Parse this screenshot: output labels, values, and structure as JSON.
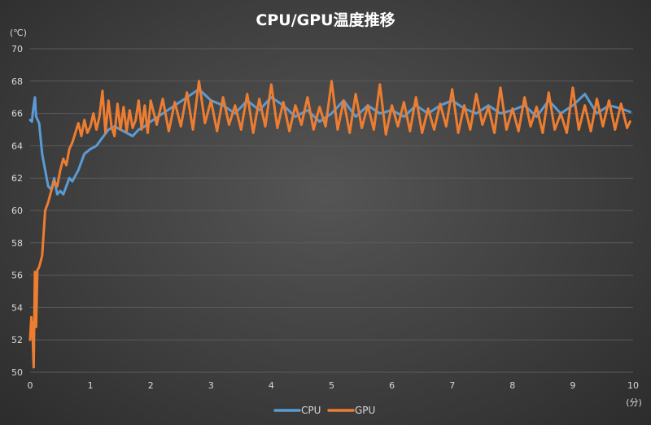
{
  "chart_data": {
    "type": "line",
    "title": "CPU/GPU温度推移",
    "ylabel": "(℃)",
    "xlabel": "(分)",
    "xlim": [
      0,
      10
    ],
    "ylim": [
      50,
      70
    ],
    "x_ticks": [
      0,
      1,
      2,
      3,
      4,
      5,
      6,
      7,
      8,
      9,
      10
    ],
    "y_ticks": [
      50,
      52,
      54,
      56,
      58,
      60,
      62,
      64,
      66,
      68,
      70
    ],
    "grid": "horizontal",
    "legend": "bottom-center",
    "series": [
      {
        "name": "CPU",
        "color": "#5b9bd5",
        "x": [
          0,
          0.03,
          0.05,
          0.08,
          0.1,
          0.15,
          0.2,
          0.25,
          0.3,
          0.35,
          0.4,
          0.45,
          0.5,
          0.55,
          0.6,
          0.65,
          0.7,
          0.8,
          0.9,
          1.0,
          1.1,
          1.2,
          1.3,
          1.4,
          1.5,
          1.6,
          1.7,
          1.8,
          1.9,
          2.0,
          2.2,
          2.4,
          2.6,
          2.8,
          3.0,
          3.2,
          3.4,
          3.6,
          3.8,
          4.0,
          4.2,
          4.4,
          4.6,
          4.8,
          5.0,
          5.2,
          5.4,
          5.6,
          5.8,
          6.0,
          6.2,
          6.4,
          6.6,
          6.8,
          7.0,
          7.2,
          7.4,
          7.6,
          7.8,
          8.0,
          8.2,
          8.4,
          8.6,
          8.8,
          9.0,
          9.2,
          9.4,
          9.6,
          9.8,
          9.95
        ],
        "y": [
          65.6,
          65.5,
          66.2,
          67.0,
          65.8,
          65.4,
          63.5,
          62.5,
          61.5,
          61.3,
          62.0,
          61.0,
          61.2,
          61.0,
          61.5,
          62.0,
          61.8,
          62.5,
          63.5,
          63.8,
          64.0,
          64.5,
          65.0,
          65.2,
          65.0,
          64.8,
          64.6,
          65.0,
          65.2,
          65.5,
          66.0,
          66.5,
          67.0,
          67.5,
          66.8,
          66.5,
          66.0,
          66.8,
          66.2,
          67.0,
          66.5,
          65.8,
          66.2,
          65.5,
          66.0,
          66.8,
          65.8,
          66.5,
          66.0,
          66.2,
          65.8,
          66.5,
          66.0,
          66.5,
          66.8,
          66.3,
          66.0,
          66.5,
          66.0,
          66.2,
          66.5,
          65.8,
          66.8,
          66.0,
          66.5,
          67.2,
          66.0,
          66.5,
          66.3,
          66.1
        ]
      },
      {
        "name": "GPU",
        "color": "#ed7d31",
        "x": [
          0,
          0.02,
          0.04,
          0.06,
          0.08,
          0.1,
          0.12,
          0.15,
          0.2,
          0.25,
          0.3,
          0.35,
          0.4,
          0.45,
          0.5,
          0.55,
          0.6,
          0.65,
          0.7,
          0.75,
          0.8,
          0.85,
          0.9,
          0.95,
          1.0,
          1.05,
          1.1,
          1.15,
          1.2,
          1.25,
          1.3,
          1.35,
          1.4,
          1.45,
          1.5,
          1.55,
          1.6,
          1.65,
          1.7,
          1.75,
          1.8,
          1.85,
          1.9,
          1.95,
          2.0,
          2.1,
          2.2,
          2.3,
          2.4,
          2.5,
          2.6,
          2.7,
          2.8,
          2.9,
          3.0,
          3.1,
          3.2,
          3.3,
          3.4,
          3.5,
          3.6,
          3.7,
          3.8,
          3.9,
          4.0,
          4.1,
          4.2,
          4.3,
          4.4,
          4.5,
          4.6,
          4.7,
          4.8,
          4.9,
          5.0,
          5.1,
          5.2,
          5.3,
          5.4,
          5.5,
          5.6,
          5.7,
          5.8,
          5.9,
          6.0,
          6.1,
          6.2,
          6.3,
          6.4,
          6.5,
          6.6,
          6.7,
          6.8,
          6.9,
          7.0,
          7.1,
          7.2,
          7.3,
          7.4,
          7.5,
          7.6,
          7.7,
          7.8,
          7.9,
          8.0,
          8.1,
          8.2,
          8.3,
          8.4,
          8.5,
          8.6,
          8.7,
          8.8,
          8.9,
          9.0,
          9.1,
          9.2,
          9.3,
          9.4,
          9.5,
          9.6,
          9.7,
          9.8,
          9.9,
          9.95
        ],
        "y": [
          52.0,
          53.4,
          52.5,
          50.3,
          56.2,
          52.8,
          56.3,
          56.5,
          57.2,
          60.0,
          60.5,
          61.2,
          61.8,
          61.5,
          62.5,
          63.2,
          62.8,
          63.8,
          64.2,
          64.8,
          65.4,
          64.6,
          65.6,
          64.8,
          65.2,
          66.0,
          65.0,
          65.8,
          67.4,
          64.8,
          66.8,
          65.2,
          64.6,
          66.6,
          65.0,
          66.4,
          64.9,
          66.2,
          65.1,
          65.6,
          66.8,
          65.0,
          66.5,
          64.8,
          66.8,
          65.3,
          66.9,
          64.9,
          66.7,
          65.2,
          67.3,
          65.0,
          68.0,
          65.4,
          66.8,
          64.9,
          67.0,
          65.3,
          66.5,
          65.0,
          67.2,
          64.8,
          66.9,
          65.2,
          67.8,
          65.1,
          66.7,
          64.9,
          66.5,
          65.3,
          67.0,
          65.0,
          66.4,
          65.2,
          68.0,
          65.0,
          66.8,
          64.8,
          67.2,
          65.1,
          66.5,
          65.0,
          67.8,
          64.7,
          66.5,
          65.2,
          66.7,
          64.9,
          67.0,
          64.8,
          66.3,
          65.0,
          66.6,
          65.2,
          67.5,
          64.8,
          66.5,
          65.0,
          67.2,
          65.3,
          66.4,
          64.8,
          67.6,
          65.0,
          66.3,
          64.9,
          67.0,
          65.2,
          66.4,
          64.8,
          67.3,
          65.0,
          66.0,
          64.8,
          67.6,
          65.0,
          66.5,
          64.9,
          66.9,
          65.2,
          66.8,
          65.0,
          66.6,
          65.1,
          65.5
        ]
      }
    ]
  }
}
